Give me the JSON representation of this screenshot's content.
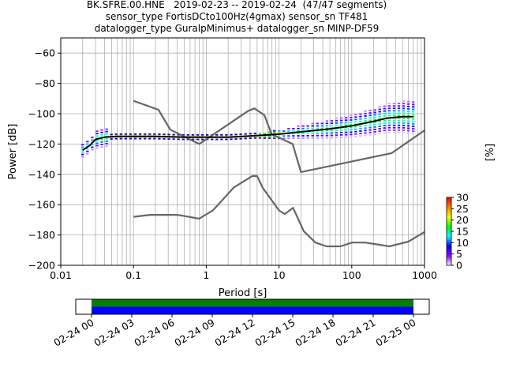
{
  "title_lines": [
    "BK.SFRE.00.HNE   2019-02-23 -- 2019-02-24  (47/47 segments)",
    "sensor_type FortisDCto100Hz(4gmax) sensor_sn TF481",
    "datalogger_type GuralpMinimus+ datalogger_sn MINP-DF59"
  ],
  "chart_data": [
    {
      "type": "heatmap",
      "title": "BK.SFRE.00.HNE   2019-02-23 -- 2019-02-24  (47/47 segments)",
      "xlabel": "Period [s]",
      "ylabel": "Power [dB]",
      "xscale": "log",
      "xlim": [
        0.01,
        1000
      ],
      "ylim": [
        -200,
        -50
      ],
      "x_ticks": [
        0.01,
        0.1,
        1,
        10,
        100,
        1000
      ],
      "x_tick_labels": [
        "0.01",
        "0.1",
        "1",
        "10",
        "100",
        "1000"
      ],
      "y_ticks": [
        -200,
        -180,
        -160,
        -140,
        -120,
        -100,
        -80,
        -60
      ],
      "y_tick_labels": [
        "−200",
        "−180",
        "−160",
        "−140",
        "−120",
        "−100",
        "−80",
        "−60"
      ],
      "grid": true,
      "colorbar": {
        "label": "[%]",
        "min": 0,
        "max": 30,
        "ticks": [
          0,
          5,
          10,
          15,
          20,
          25,
          30
        ],
        "colormap": [
          "#ffffff",
          "#8b00ff",
          "#0000ff",
          "#00ffff",
          "#00ff00",
          "#ffff00",
          "#ff8000",
          "#ff0000"
        ]
      },
      "noise_model_high": {
        "period": [
          0.1,
          0.22,
          0.32,
          0.8,
          3.8,
          4.6,
          6.3,
          7.9,
          15.4,
          20,
          354,
          1000
        ],
        "power": [
          -91.5,
          -97.4,
          -110.5,
          -120,
          -98,
          -96.5,
          -101,
          -113.5,
          -120,
          -138.5,
          -126,
          -111
        ]
      },
      "noise_model_low": {
        "period": [
          0.1,
          0.17,
          0.4,
          0.8,
          1.24,
          2.4,
          4.3,
          5,
          6,
          10,
          12,
          15.6,
          21.9,
          31.6,
          45,
          70,
          101,
          154,
          328,
          600,
          1000
        ],
        "power": [
          -168,
          -166.7,
          -166.7,
          -169.2,
          -163.7,
          -148.6,
          -141.1,
          -141.1,
          -149,
          -163.8,
          -166.2,
          -162.1,
          -177.5,
          -185,
          -187.5,
          -187.5,
          -185,
          -185,
          -187.5,
          -184.4,
          -178
        ]
      },
      "mean_psd": {
        "period": [
          0.02,
          0.025,
          0.03,
          0.04,
          0.06,
          0.1,
          0.2,
          0.5,
          1,
          2,
          5,
          10,
          20,
          50,
          100,
          200,
          300,
          500,
          700
        ],
        "power": [
          -124,
          -121,
          -117,
          -115.5,
          -115,
          -115,
          -115,
          -115.5,
          -115.5,
          -115.5,
          -114.5,
          -113.5,
          -112,
          -110,
          -108,
          -105,
          -103,
          -102,
          -102
        ]
      }
    },
    {
      "type": "timeline",
      "x_tick_labels": [
        "02-24 00",
        "02-24 03",
        "02-24 06",
        "02-24 09",
        "02-24 12",
        "02-24 15",
        "02-24 18",
        "02-24 21",
        "02-25 00"
      ],
      "bands": [
        {
          "start": "02-24 00",
          "end": "02-25 00",
          "color": "#008000"
        },
        {
          "start": "02-24 00",
          "end": "02-25 00",
          "color": "#0000ff"
        }
      ]
    }
  ]
}
